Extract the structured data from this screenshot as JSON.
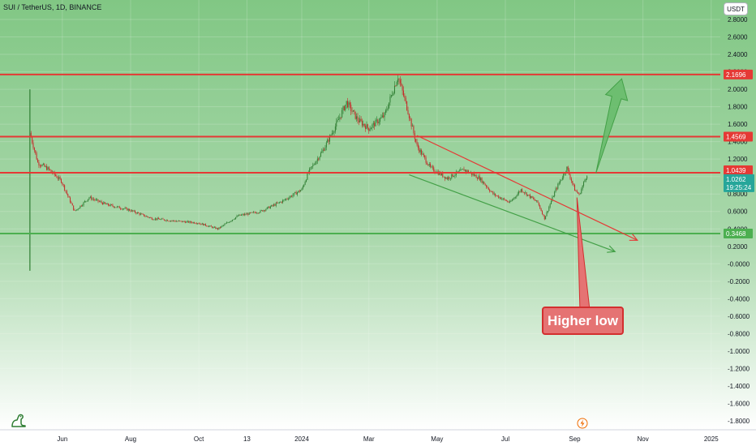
{
  "header": {
    "symbol_title": "SUI / TetherUS, 1D, BINANCE",
    "currency_button": "USDT"
  },
  "annotation": {
    "callout_text": "Higher low"
  },
  "price_labels": {
    "level_high": "2.1696",
    "level_mid": "1.4569",
    "level_resistance": "1.0439",
    "current_price": "1.0262",
    "countdown": "19:25:24",
    "level_support": "0.3468"
  },
  "colors": {
    "background_green": "#81c784",
    "resistance_red": "#e53935",
    "support_green": "#4caf50",
    "arrow_green": "#66bb6a",
    "callout_fill": "#e57373",
    "candle_up": "#2e7d32",
    "candle_down": "#c62828",
    "current_price_bg": "#26a69a"
  },
  "icons": {
    "logo": "tradingview-dino-icon",
    "lightning": "lightning-icon"
  },
  "chart_data": {
    "type": "candlestick",
    "title": "SUI / TetherUS, 1D, BINANCE",
    "x_ticks": [
      "Jun",
      "Aug",
      "Oct",
      "13",
      "2024",
      "Mar",
      "May",
      "Jul",
      "Sep",
      "Nov",
      "2025"
    ],
    "y_ticks": [
      "2.8000",
      "2.6000",
      "2.4000",
      "2.2000",
      "2.0000",
      "1.8000",
      "1.6000",
      "1.4000",
      "1.2000",
      "1.0000",
      "0.8000",
      "0.6000",
      "0.4000",
      "0.2000",
      "-0.0000",
      "-0.2000",
      "-0.4000",
      "-0.6000",
      "-0.8000",
      "-1.0000",
      "-1.2000",
      "-1.4000",
      "-1.6000",
      "-1.8000"
    ],
    "ylim": [
      -1.85,
      2.85
    ],
    "horizontal_levels": [
      {
        "price": 2.1696,
        "color": "red"
      },
      {
        "price": 1.4569,
        "color": "red"
      },
      {
        "price": 1.0439,
        "color": "red"
      },
      {
        "price": 0.3468,
        "color": "green"
      }
    ],
    "current_price": 1.0262,
    "price_path": [
      {
        "x": "2023-05-03",
        "y": 1.5
      },
      {
        "x": "2023-05-10",
        "y": 1.16
      },
      {
        "x": "2023-05-20",
        "y": 1.08
      },
      {
        "x": "2023-05-31",
        "y": 0.95
      },
      {
        "x": "2023-06-12",
        "y": 0.6
      },
      {
        "x": "2023-06-25",
        "y": 0.76
      },
      {
        "x": "2023-07-10",
        "y": 0.68
      },
      {
        "x": "2023-07-30",
        "y": 0.62
      },
      {
        "x": "2023-08-20",
        "y": 0.52
      },
      {
        "x": "2023-09-10",
        "y": 0.49
      },
      {
        "x": "2023-09-30",
        "y": 0.47
      },
      {
        "x": "2023-10-18",
        "y": 0.4
      },
      {
        "x": "2023-11-05",
        "y": 0.55
      },
      {
        "x": "2023-11-25",
        "y": 0.6
      },
      {
        "x": "2023-12-15",
        "y": 0.72
      },
      {
        "x": "2024-01-01",
        "y": 0.85
      },
      {
        "x": "2024-01-07",
        "y": 1.05
      },
      {
        "x": "2024-01-20",
        "y": 1.3
      },
      {
        "x": "2024-02-01",
        "y": 1.6
      },
      {
        "x": "2024-02-10",
        "y": 1.85
      },
      {
        "x": "2024-02-20",
        "y": 1.65
      },
      {
        "x": "2024-03-01",
        "y": 1.55
      },
      {
        "x": "2024-03-15",
        "y": 1.7
      },
      {
        "x": "2024-03-27",
        "y": 2.15
      },
      {
        "x": "2024-04-05",
        "y": 1.75
      },
      {
        "x": "2024-04-13",
        "y": 1.35
      },
      {
        "x": "2024-04-25",
        "y": 1.1
      },
      {
        "x": "2024-05-10",
        "y": 0.98
      },
      {
        "x": "2024-05-25",
        "y": 1.08
      },
      {
        "x": "2024-06-08",
        "y": 0.98
      },
      {
        "x": "2024-06-20",
        "y": 0.8
      },
      {
        "x": "2024-07-05",
        "y": 0.7
      },
      {
        "x": "2024-07-15",
        "y": 0.85
      },
      {
        "x": "2024-07-30",
        "y": 0.7
      },
      {
        "x": "2024-08-05",
        "y": 0.52
      },
      {
        "x": "2024-08-15",
        "y": 0.85
      },
      {
        "x": "2024-08-25",
        "y": 1.1
      },
      {
        "x": "2024-09-01",
        "y": 0.85
      },
      {
        "x": "2024-09-05",
        "y": 0.79
      },
      {
        "x": "2024-09-12",
        "y": 1.0262
      }
    ],
    "trendlines": [
      {
        "color": "red",
        "from": {
          "x": "2024-04-13",
          "y": 1.47
        },
        "to": {
          "x": "2024-10-27",
          "y": 0.27
        }
      },
      {
        "color": "green",
        "from": {
          "x": "2024-04-06",
          "y": 1.02
        },
        "to": {
          "x": "2024-10-07",
          "y": 0.14
        }
      },
      {
        "color": "green",
        "from": {
          "x": "2024-09-20",
          "y": 1.04
        },
        "to": {
          "x": "2024-10-13",
          "y": 2.12
        },
        "kind": "projection_arrow"
      },
      {
        "color": "red",
        "from": {
          "x": "2024-09-03",
          "y": 0.76
        },
        "to": {
          "x": "2024-09-10",
          "y": -0.52
        },
        "kind": "callout_arrow"
      }
    ],
    "grid": true
  }
}
